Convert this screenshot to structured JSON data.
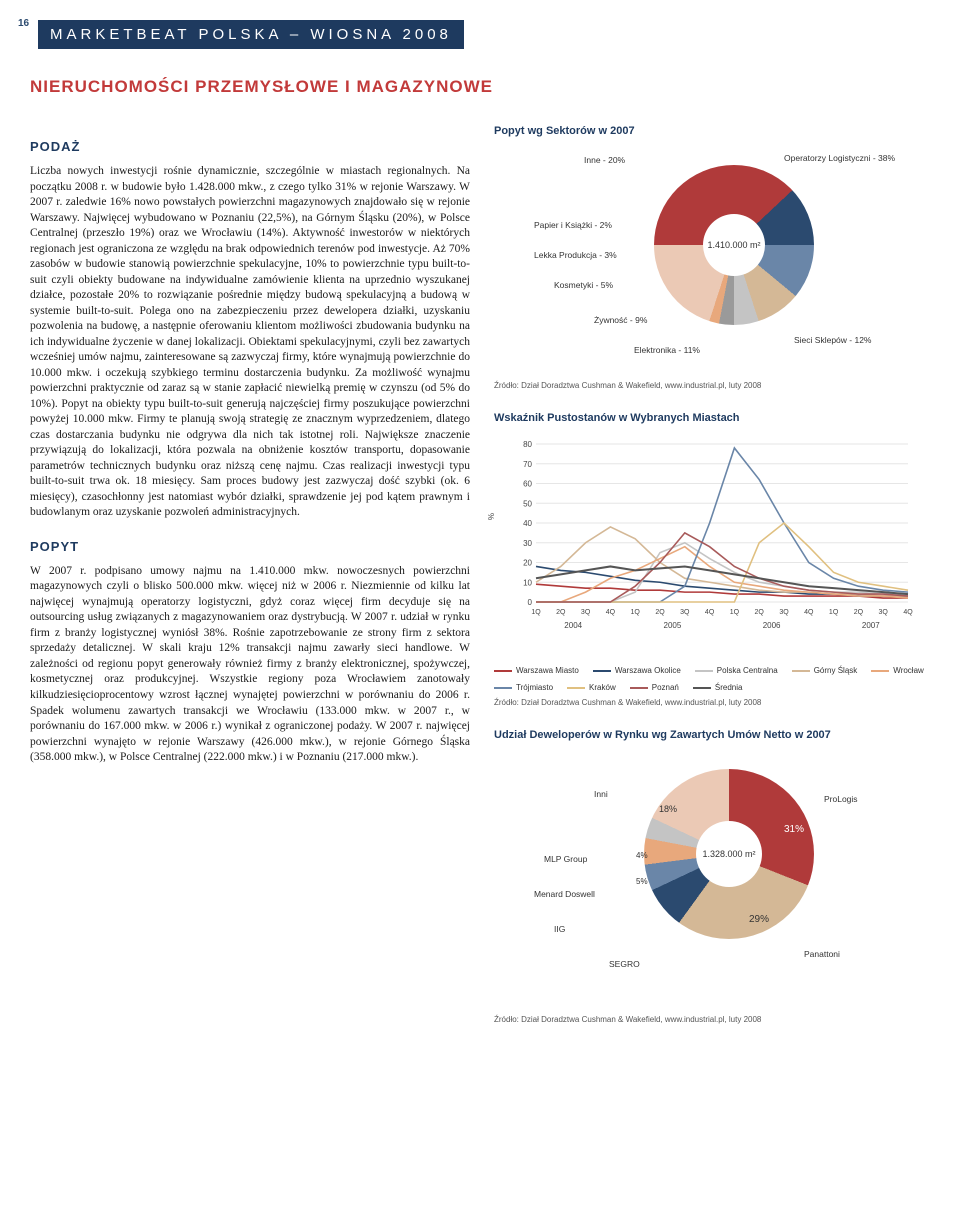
{
  "page_number": "16",
  "header": "MARKETBEAT POLSKA – WIOSNA 2008",
  "section_title": "NIERUCHOMOŚCI PRZEMYSŁOWE I MAGAZYNOWE",
  "sub_podaz": "PODAŻ",
  "sub_popyt": "POPYT",
  "para1": "Liczba nowych inwestycji rośnie dynamicznie, szczególnie w miastach regionalnych. Na początku 2008 r. w budowie było 1.428.000 mkw., z czego tylko 31% w rejonie Warszawy. W 2007 r. zaledwie 16% nowo powstałych powierzchni magazynowych znajdowało się w rejonie Warszawy. Najwięcej wybudowano w Poznaniu (22,5%), na Górnym Śląsku (20%), w Polsce Centralnej (przeszło 19%) oraz we Wrocławiu (14%). Aktywność inwestorów w niektórych regionach jest ograniczona ze względu na brak odpowiednich terenów pod inwestycje. Aż 70% zasobów w budowie stanowią powierzchnie spekulacyjne, 10% to powierzchnie typu built-to-suit czyli obiekty budowane na indywidualne zamówienie klienta na uprzednio wyszukanej działce, pozostałe 20% to rozwiązanie pośrednie między budową spekulacyjną a budową w systemie built-to-suit. Polega ono na zabezpieczeniu przez dewelopera działki, uzyskaniu pozwolenia na budowę, a następnie oferowaniu klientom możliwości zbudowania budynku na ich indywidualne życzenie w danej lokalizacji. Obiektami spekulacyjnymi, czyli bez zawartych wcześniej umów najmu, zainteresowane są zazwyczaj firmy, które wynajmują powierzchnie do 10.000 mkw. i oczekują szybkiego terminu dostarczenia budynku. Za możliwość wynajmu powierzchni praktycznie od zaraz są w stanie zapłacić niewielką premię w czynszu (od 5% do 10%). Popyt na obiekty typu built-to-suit generują najczęściej firmy poszukujące powierzchni powyżej 10.000 mkw. Firmy te planują swoją strategię ze znacznym wyprzedzeniem, dlatego czas dostarczania budynku nie odgrywa dla nich tak istotnej roli. Największe znaczenie przywiązują do lokalizacji, która pozwala na obniżenie kosztów transportu, dopasowanie parametrów technicznych budynku oraz niższą cenę najmu. Czas realizacji inwestycji typu built-to-suit trwa ok. 18 miesięcy. Sam proces budowy jest zazwyczaj dość szybki (ok. 6 miesięcy), czasochłonny jest natomiast wybór działki, sprawdzenie jej pod kątem prawnym i budowlanym oraz uzyskanie pozwoleń administracyjnych.",
  "para2": "W 2007 r. podpisano umowy najmu na 1.410.000 mkw. nowoczesnych powierzchni magazynowych czyli o blisko 500.000 mkw. więcej niż w 2006 r. Niezmiennie od kilku lat najwięcej wynajmują operatorzy logistyczni, gdyż coraz więcej firm decyduje się na outsourcing usług związanych z magazynowaniem oraz dystrybucją. W 2007 r. udział w rynku firm z branży logistycznej wyniósł 38%. Rośnie zapotrzebowanie ze strony firm z sektora sprzedaży detalicznej. W skali kraju 12% transakcji najmu zawarły sieci handlowe. W zależności od regionu popyt generowały również firmy z branży elektronicznej, spożywczej, kosmetycznej oraz produkcyjnej. Wszystkie regiony poza Wrocławiem zanotowały kilkudziesięcioprocentowy wzrost łącznej wynajętej powierzchni w porównaniu do 2006 r. Spadek wolumenu zawartych transakcji we Wrocławiu (133.000 mkw. w 2007 r., w porównaniu do 167.000 mkw. w 2006 r.) wynikał z ograniczonej podaży. W 2007 r. najwięcej powierzchni wynajęto w rejonie Warszawy (426.000 mkw.), w rejonie Górnego Śląska (358.000 mkw.), w Polsce Centralnej (222.000 mkw.) i w Poznaniu (217.000 mkw.).",
  "chart1": {
    "title": "Popyt wg Sektorów w 2007",
    "center": "1.410.000 m²",
    "segments": [
      {
        "label": "Operatorzy Logistyczni - 38%",
        "value": 38,
        "color": "#b03a3a"
      },
      {
        "label": "Sieci Sklepów - 12%",
        "value": 12,
        "color": "#2b4a6f"
      },
      {
        "label": "Elektronika - 11%",
        "value": 11,
        "color": "#6a86a8"
      },
      {
        "label": "Żywność - 9%",
        "value": 9,
        "color": "#d4b896"
      },
      {
        "label": "Kosmetyki - 5%",
        "value": 5,
        "color": "#c4c4c4"
      },
      {
        "label": "Lekka Produkcja - 3%",
        "value": 3,
        "color": "#9a9a9a"
      },
      {
        "label": "Papier i Książki - 2%",
        "value": 2,
        "color": "#e8a87c"
      },
      {
        "label": "Inne - 20%",
        "value": 20,
        "color": "#ebc9b5"
      }
    ],
    "source": "Źródło: Dział Doradztwa Cushman & Wakefield, www.industrial.pl, luty 2008"
  },
  "chart2": {
    "title": "Wskaźnik Pustostanów w Wybranych Miastach",
    "ylabel": "%",
    "ylim": [
      0,
      80
    ],
    "ytick_step": 10,
    "x_categories": [
      "1Q",
      "2Q",
      "3Q",
      "4Q",
      "1Q",
      "2Q",
      "3Q",
      "4Q",
      "1Q",
      "2Q",
      "3Q",
      "4Q",
      "1Q",
      "2Q",
      "3Q",
      "4Q"
    ],
    "x_years": [
      "2004",
      "2005",
      "2006",
      "2007"
    ],
    "series": [
      {
        "name": "Warszawa Miasto",
        "color": "#b03a3a",
        "values": [
          9,
          8,
          7,
          7,
          6,
          6,
          5,
          5,
          4,
          4,
          3,
          3,
          3,
          3,
          2,
          2
        ]
      },
      {
        "name": "Warszawa Okolice",
        "color": "#2b4a6f",
        "values": [
          18,
          16,
          15,
          13,
          11,
          10,
          8,
          7,
          6,
          5,
          5,
          4,
          4,
          3,
          3,
          3
        ]
      },
      {
        "name": "Polska Centralna",
        "color": "#c4c4c4",
        "values": [
          0,
          0,
          0,
          0,
          5,
          25,
          30,
          22,
          15,
          10,
          8,
          6,
          5,
          5,
          4,
          4
        ]
      },
      {
        "name": "Górny Śląsk",
        "color": "#d4b896",
        "values": [
          10,
          18,
          30,
          38,
          32,
          20,
          12,
          10,
          8,
          6,
          5,
          5,
          4,
          4,
          3,
          3
        ]
      },
      {
        "name": "Wrocław",
        "color": "#e8a87c",
        "values": [
          0,
          0,
          5,
          12,
          16,
          22,
          28,
          18,
          10,
          8,
          6,
          5,
          4,
          3,
          3,
          2
        ]
      },
      {
        "name": "Trójmiasto",
        "color": "#6a86a8",
        "values": [
          0,
          0,
          0,
          0,
          0,
          0,
          8,
          40,
          78,
          62,
          40,
          20,
          12,
          8,
          6,
          5
        ]
      },
      {
        "name": "Kraków",
        "color": "#e0c080",
        "values": [
          0,
          0,
          0,
          0,
          0,
          0,
          0,
          0,
          0,
          30,
          40,
          28,
          15,
          10,
          8,
          6
        ]
      },
      {
        "name": "Poznań",
        "color": "#a85a5a",
        "values": [
          0,
          0,
          0,
          0,
          8,
          20,
          35,
          28,
          18,
          12,
          8,
          6,
          5,
          4,
          4,
          3
        ]
      },
      {
        "name": "Średnia",
        "color": "#555555",
        "values": [
          12,
          14,
          16,
          18,
          16,
          17,
          18,
          16,
          14,
          12,
          10,
          8,
          7,
          6,
          5,
          4
        ]
      }
    ],
    "source": "Źródło: Dział Doradztwa Cushman & Wakefield, www.industrial.pl, luty 2008"
  },
  "chart3": {
    "title": "Udział Deweloperów w Rynku wg Zawartych Umów Netto w 2007",
    "center": "1.328.000 m²",
    "segments": [
      {
        "label": "ProLogis",
        "value": 31,
        "color": "#b03a3a"
      },
      {
        "label": "Panattoni",
        "value": 29,
        "color": "#d4b896"
      },
      {
        "label": "SEGRO",
        "value": 8,
        "color": "#2b4a6f"
      },
      {
        "label": "IIG",
        "value": 5,
        "color": "#6a86a8"
      },
      {
        "label": "Menard Doswell",
        "value": 5,
        "color": "#e8a87c"
      },
      {
        "label": "MLP Group",
        "value": 4,
        "color": "#c4c4c4"
      },
      {
        "label": "Inni",
        "value": 18,
        "color": "#ebc9b5"
      }
    ],
    "pct_labels": {
      "prologis": "31%",
      "panattoni": "29%",
      "segro": "8%",
      "iig": "5%",
      "menard": "5%",
      "mlp": "4%",
      "inni": "18%"
    },
    "source": "Źródło: Dział Doradztwa Cushman & Wakefield, www.industrial.pl, luty 2008"
  },
  "colors": {
    "header_bg": "#1e3a5f",
    "accent_red": "#c23a3a"
  }
}
